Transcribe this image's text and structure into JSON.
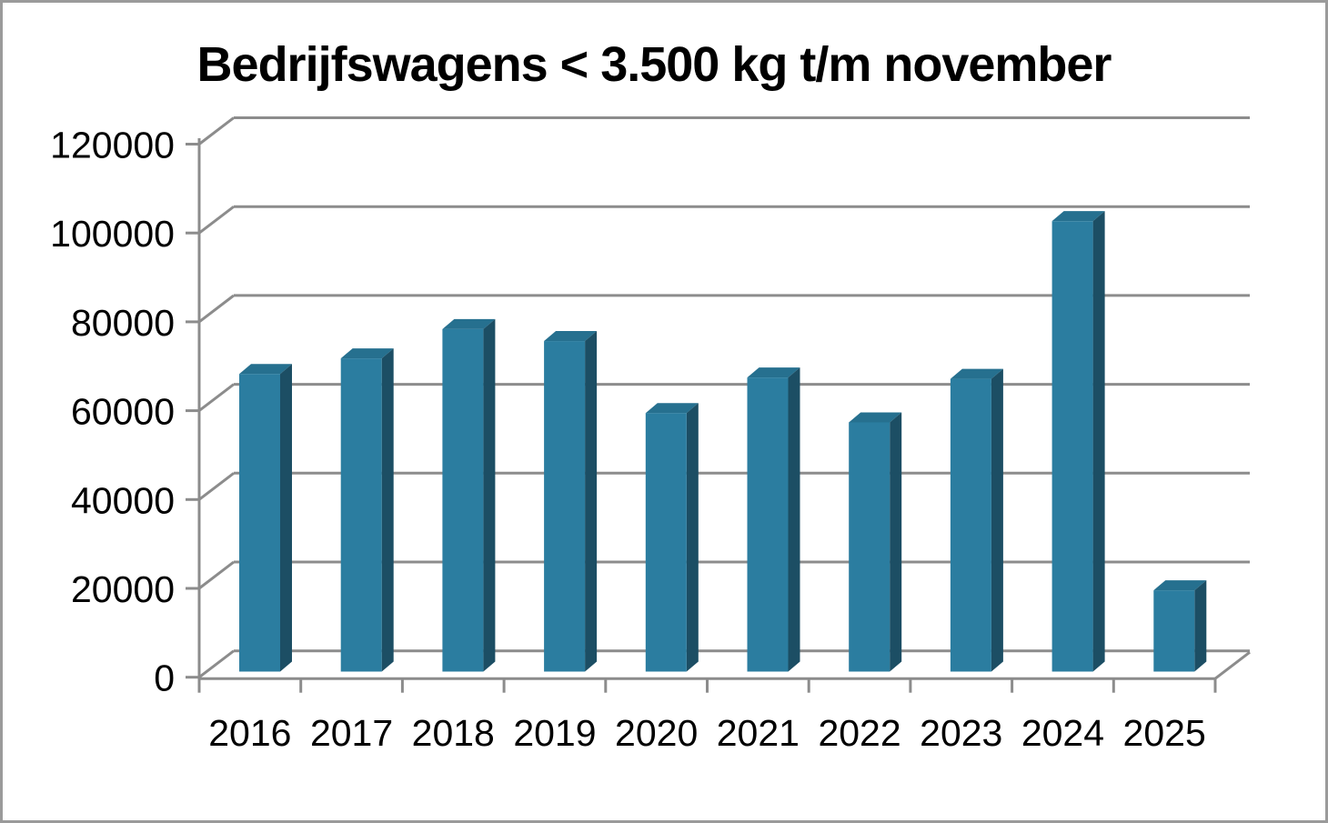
{
  "title": "Bedrijfswagens < 3.500 kg t/m november",
  "chart_data": {
    "type": "bar",
    "style": "3d-column",
    "title": "Bedrijfswagens < 3.500 kg t/m november",
    "categories": [
      "2016",
      "2017",
      "2018",
      "2019",
      "2020",
      "2021",
      "2022",
      "2023",
      "2024",
      "2025"
    ],
    "values": [
      67000,
      70500,
      77100,
      74400,
      58200,
      66200,
      56100,
      65900,
      101400,
      18300
    ],
    "xlabel": "",
    "ylabel": "",
    "ylim": [
      0,
      120000
    ],
    "ytick_step": 20000,
    "ytick_labels": [
      "0",
      "20000",
      "40000",
      "60000",
      "80000",
      "100000",
      "120000"
    ],
    "grid": true,
    "legend": false
  },
  "colors": {
    "bar_front": "#2B7DA0",
    "bar_side": "#1C4E64",
    "bar_top": "#26708F",
    "gridline": "#8C8C8C",
    "axis": "#8C8C8C",
    "text": "#000000",
    "background": "#FFFFFF",
    "frame_border": "#9A9A9A"
  }
}
